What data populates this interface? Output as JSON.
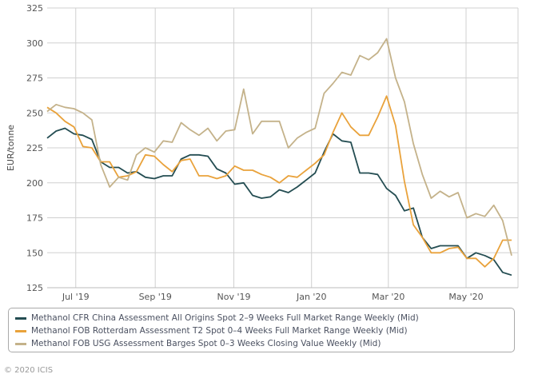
{
  "chart_data": {
    "type": "line",
    "title": "",
    "xlabel": "",
    "ylabel": "EUR/tonne",
    "ylim": [
      125,
      325
    ],
    "yticks": [
      125,
      150,
      175,
      200,
      225,
      250,
      275,
      300,
      325
    ],
    "x_unit": "week index",
    "xlim": [
      0,
      52
    ],
    "xticks": [
      {
        "label": "Jul '19",
        "at": 3.2
      },
      {
        "label": "Sep '19",
        "at": 12.1
      },
      {
        "label": "Nov '19",
        "at": 20.9
      },
      {
        "label": "Jan '20",
        "at": 29.6
      },
      {
        "label": "Mar '20",
        "at": 38.2
      },
      {
        "label": "May '20",
        "at": 46.9
      }
    ],
    "grid": true,
    "legend_placement": "bottom",
    "series": [
      {
        "name": "Methanol CFR China Assessment All Origins Spot 2–9 Weeks Full Market Range Weekly (Mid)",
        "color": "#244d52",
        "values": [
          232,
          237,
          239,
          235,
          234,
          231,
          215,
          211,
          211,
          207,
          208,
          204,
          203,
          205,
          205,
          217,
          220,
          220,
          219,
          210,
          207,
          199,
          200,
          191,
          189,
          190,
          195,
          193,
          197,
          202,
          207,
          222,
          235,
          230,
          229,
          207,
          207,
          206,
          196,
          191,
          180,
          182,
          161,
          153,
          155,
          155,
          155,
          146,
          150,
          148,
          145,
          136,
          134
        ]
      },
      {
        "name": "Methanol FOB Rotterdam Assessment T2 Spot 0–4 Weeks Full Market Range Weekly (Mid)",
        "color": "#e9a23b",
        "values": [
          254,
          250,
          244,
          240,
          226,
          225,
          215,
          215,
          204,
          205,
          208,
          220,
          219,
          213,
          208,
          216,
          217,
          205,
          205,
          203,
          205,
          212,
          209,
          209,
          206,
          204,
          200,
          205,
          204,
          209,
          214,
          220,
          236,
          250,
          240,
          234,
          234,
          247,
          262,
          241,
          201,
          170,
          161,
          150,
          150,
          153,
          154,
          146,
          146,
          140,
          146,
          159,
          159
        ]
      },
      {
        "name": "Methanol FOB USG Assessment Barges Spot 0–3 Weeks Closing Value Weekly (Mid)",
        "color": "#c4b28a",
        "values": [
          251,
          256,
          254,
          253,
          250,
          245,
          213,
          197,
          204,
          202,
          220,
          225,
          222,
          230,
          229,
          243,
          238,
          234,
          239,
          230,
          237,
          238,
          267,
          235,
          244,
          244,
          244,
          225,
          232,
          236,
          239,
          264,
          271,
          279,
          277,
          291,
          288,
          293,
          303,
          275,
          258,
          228,
          206,
          189,
          194,
          190,
          193,
          175,
          178,
          176,
          184,
          173,
          148
        ]
      }
    ]
  },
  "footer": "© 2020 ICIS"
}
